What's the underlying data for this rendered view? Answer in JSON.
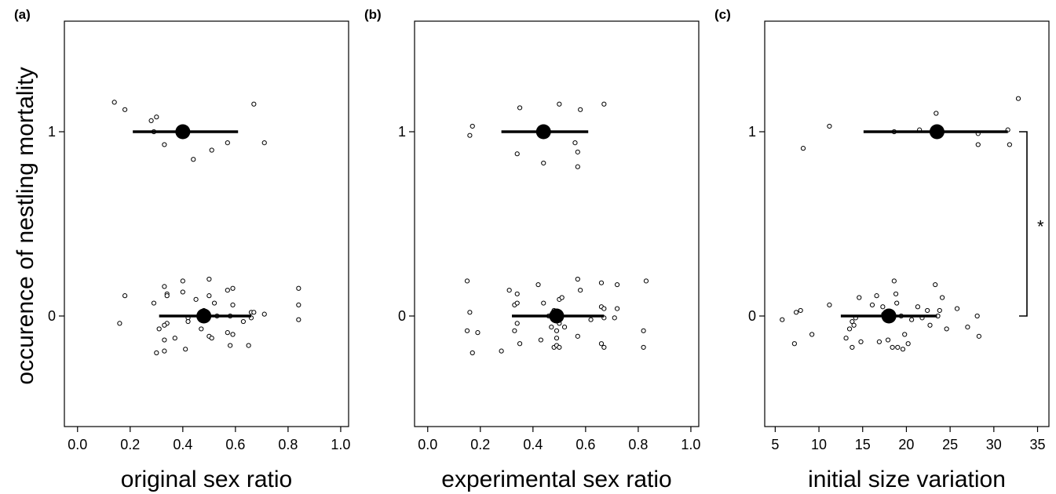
{
  "ylabel": "occurence of nestling mortality",
  "chart_data": [
    {
      "type": "scatter",
      "panel_label": "(a)",
      "xlabel": "original sex ratio",
      "xlim": [
        -0.05,
        1.03
      ],
      "ylim": [
        -0.6,
        1.6
      ],
      "xticks": [
        "0.0",
        "0.2",
        "0.4",
        "0.6",
        "0.8",
        "1.0"
      ],
      "xtick_values": [
        0,
        0.2,
        0.4,
        0.6,
        0.8,
        1.0
      ],
      "yticks": [
        "0",
        "1"
      ],
      "ytick_values": [
        0,
        1
      ],
      "points": [
        [
          0.14,
          1.16
        ],
        [
          0.18,
          1.12
        ],
        [
          0.28,
          1.06
        ],
        [
          0.3,
          1.08
        ],
        [
          0.29,
          1.0
        ],
        [
          0.33,
          0.93
        ],
        [
          0.44,
          0.85
        ],
        [
          0.51,
          0.9
        ],
        [
          0.57,
          0.94
        ],
        [
          0.67,
          1.15
        ],
        [
          0.71,
          0.94
        ],
        [
          0.16,
          -0.04
        ],
        [
          0.18,
          0.11
        ],
        [
          0.29,
          0.07
        ],
        [
          0.3,
          -0.2
        ],
        [
          0.31,
          -0.07
        ],
        [
          0.33,
          0.16
        ],
        [
          0.33,
          -0.19
        ],
        [
          0.34,
          0.12
        ],
        [
          0.33,
          -0.13
        ],
        [
          0.34,
          0.11
        ],
        [
          0.34,
          -0.04
        ],
        [
          0.33,
          -0.05
        ],
        [
          0.37,
          -0.12
        ],
        [
          0.4,
          0.19
        ],
        [
          0.41,
          -0.18
        ],
        [
          0.4,
          0.13
        ],
        [
          0.42,
          -0.01
        ],
        [
          0.42,
          -0.03
        ],
        [
          0.45,
          0.09
        ],
        [
          0.47,
          -0.07
        ],
        [
          0.48,
          0.03
        ],
        [
          0.5,
          -0.11
        ],
        [
          0.5,
          0.11
        ],
        [
          0.5,
          0.2
        ],
        [
          0.51,
          -0.12
        ],
        [
          0.52,
          0.07
        ],
        [
          0.53,
          0.0
        ],
        [
          0.57,
          0.14
        ],
        [
          0.57,
          -0.09
        ],
        [
          0.58,
          0.0
        ],
        [
          0.58,
          -0.16
        ],
        [
          0.59,
          0.06
        ],
        [
          0.59,
          -0.1
        ],
        [
          0.59,
          0.15
        ],
        [
          0.63,
          -0.03
        ],
        [
          0.65,
          -0.16
        ],
        [
          0.66,
          -0.01
        ],
        [
          0.66,
          0.02
        ],
        [
          0.67,
          0.02
        ],
        [
          0.71,
          0.01
        ],
        [
          0.84,
          0.15
        ],
        [
          0.84,
          0.06
        ],
        [
          0.84,
          -0.02
        ]
      ],
      "means": [
        {
          "y": 1,
          "x": 0.4,
          "xmin": 0.21,
          "xmax": 0.61
        },
        {
          "y": 0,
          "x": 0.48,
          "xmin": 0.31,
          "xmax": 0.66
        }
      ]
    },
    {
      "type": "scatter",
      "panel_label": "(b)",
      "xlabel": "experimental sex ratio",
      "xlim": [
        -0.05,
        1.03
      ],
      "ylim": [
        -0.6,
        1.6
      ],
      "xticks": [
        "0.0",
        "0.2",
        "0.4",
        "0.6",
        "0.8",
        "1.0"
      ],
      "xtick_values": [
        0,
        0.2,
        0.4,
        0.6,
        0.8,
        1.0
      ],
      "yticks": [
        "0",
        "1"
      ],
      "ytick_values": [
        0,
        1
      ],
      "points": [
        [
          0.17,
          1.03
        ],
        [
          0.16,
          0.98
        ],
        [
          0.34,
          0.88
        ],
        [
          0.35,
          1.13
        ],
        [
          0.44,
          0.83
        ],
        [
          0.5,
          1.15
        ],
        [
          0.56,
          0.94
        ],
        [
          0.57,
          0.89
        ],
        [
          0.58,
          1.12
        ],
        [
          0.57,
          0.81
        ],
        [
          0.67,
          1.15
        ],
        [
          0.15,
          0.19
        ],
        [
          0.15,
          -0.08
        ],
        [
          0.16,
          0.02
        ],
        [
          0.17,
          -0.2
        ],
        [
          0.19,
          -0.09
        ],
        [
          0.28,
          -0.19
        ],
        [
          0.31,
          0.14
        ],
        [
          0.33,
          -0.08
        ],
        [
          0.33,
          0.06
        ],
        [
          0.34,
          0.12
        ],
        [
          0.34,
          -0.04
        ],
        [
          0.34,
          0.07
        ],
        [
          0.35,
          -0.15
        ],
        [
          0.42,
          0.17
        ],
        [
          0.43,
          -0.13
        ],
        [
          0.44,
          0.07
        ],
        [
          0.46,
          0.0
        ],
        [
          0.47,
          -0.06
        ],
        [
          0.48,
          0.03
        ],
        [
          0.48,
          -0.17
        ],
        [
          0.49,
          -0.08
        ],
        [
          0.49,
          -0.12
        ],
        [
          0.49,
          -0.16
        ],
        [
          0.5,
          0.09
        ],
        [
          0.5,
          -0.04
        ],
        [
          0.5,
          -0.17
        ],
        [
          0.51,
          0.1
        ],
        [
          0.52,
          -0.06
        ],
        [
          0.57,
          0.2
        ],
        [
          0.57,
          -0.11
        ],
        [
          0.58,
          0.14
        ],
        [
          0.62,
          -0.02
        ],
        [
          0.66,
          0.18
        ],
        [
          0.66,
          0.05
        ],
        [
          0.66,
          -0.15
        ],
        [
          0.67,
          0.04
        ],
        [
          0.67,
          -0.17
        ],
        [
          0.67,
          -0.01
        ],
        [
          0.71,
          -0.01
        ],
        [
          0.72,
          0.04
        ],
        [
          0.72,
          0.17
        ],
        [
          0.82,
          -0.08
        ],
        [
          0.82,
          -0.17
        ],
        [
          0.83,
          0.19
        ]
      ],
      "means": [
        {
          "y": 1,
          "x": 0.44,
          "xmin": 0.28,
          "xmax": 0.61
        },
        {
          "y": 0,
          "x": 0.49,
          "xmin": 0.32,
          "xmax": 0.67
        }
      ]
    },
    {
      "type": "scatter",
      "panel_label": "(c)",
      "xlabel": "initial size variation",
      "xlim": [
        3.8,
        36.3
      ],
      "ylim": [
        -0.6,
        1.6
      ],
      "xticks": [
        "5",
        "10",
        "15",
        "20",
        "25",
        "30",
        "35"
      ],
      "xtick_values": [
        5,
        10,
        15,
        20,
        25,
        30,
        35
      ],
      "yticks": [
        "0",
        "1"
      ],
      "ytick_values": [
        0,
        1
      ],
      "annotation": "*",
      "points": [
        [
          8.2,
          0.91
        ],
        [
          11.2,
          1.03
        ],
        [
          18.6,
          1.0
        ],
        [
          21.5,
          1.01
        ],
        [
          23.4,
          1.1
        ],
        [
          28.2,
          0.99
        ],
        [
          28.2,
          0.93
        ],
        [
          31.6,
          1.01
        ],
        [
          31.8,
          0.93
        ],
        [
          32.8,
          1.18
        ],
        [
          5.8,
          -0.02
        ],
        [
          7.2,
          -0.15
        ],
        [
          7.4,
          0.02
        ],
        [
          7.9,
          0.03
        ],
        [
          9.2,
          -0.1
        ],
        [
          11.2,
          0.06
        ],
        [
          13.1,
          -0.12
        ],
        [
          13.5,
          -0.07
        ],
        [
          13.8,
          -0.03
        ],
        [
          13.8,
          -0.17
        ],
        [
          14.0,
          -0.05
        ],
        [
          14.2,
          -0.01
        ],
        [
          14.6,
          0.1
        ],
        [
          14.8,
          -0.14
        ],
        [
          16.1,
          0.06
        ],
        [
          16.6,
          0.11
        ],
        [
          16.9,
          -0.14
        ],
        [
          17.3,
          0.05
        ],
        [
          17.4,
          0.01
        ],
        [
          17.9,
          -0.13
        ],
        [
          18.4,
          -0.17
        ],
        [
          18.6,
          0.19
        ],
        [
          18.8,
          0.12
        ],
        [
          18.9,
          0.07
        ],
        [
          19.0,
          -0.17
        ],
        [
          19.4,
          0.0
        ],
        [
          19.6,
          -0.18
        ],
        [
          19.8,
          -0.1
        ],
        [
          20.2,
          -0.15
        ],
        [
          20.6,
          -0.02
        ],
        [
          21.3,
          0.05
        ],
        [
          21.8,
          -0.01
        ],
        [
          22.4,
          0.03
        ],
        [
          22.7,
          -0.05
        ],
        [
          23.3,
          0.17
        ],
        [
          23.6,
          0.0
        ],
        [
          23.8,
          0.03
        ],
        [
          24.1,
          0.1
        ],
        [
          24.6,
          -0.07
        ],
        [
          25.8,
          0.04
        ],
        [
          27.0,
          -0.06
        ],
        [
          28.1,
          0.0
        ],
        [
          28.3,
          -0.11
        ]
      ],
      "means": [
        {
          "y": 1,
          "x": 23.5,
          "xmin": 15.1,
          "xmax": 31.6
        },
        {
          "y": 0,
          "x": 18.0,
          "xmin": 12.5,
          "xmax": 23.5
        }
      ]
    }
  ]
}
